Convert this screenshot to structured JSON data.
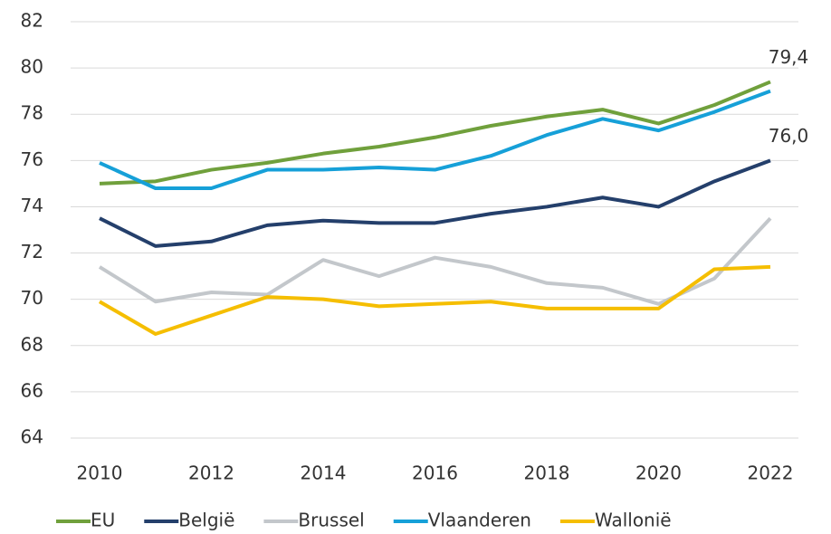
{
  "chart_data": {
    "type": "line",
    "x": [
      2010,
      2011,
      2012,
      2013,
      2014,
      2015,
      2016,
      2017,
      2018,
      2019,
      2020,
      2021,
      2022
    ],
    "xlim": [
      2010,
      2022
    ],
    "xticks": [
      2010,
      2012,
      2014,
      2016,
      2018,
      2020,
      2022
    ],
    "ylim": [
      64,
      82
    ],
    "yticks": [
      64,
      66,
      68,
      70,
      72,
      74,
      76,
      78,
      80,
      82
    ],
    "grid": true,
    "legend": "bottom",
    "series": [
      {
        "name": "EU",
        "color": "#70a03c",
        "values": [
          75.0,
          75.1,
          75.6,
          75.9,
          76.3,
          76.6,
          77.0,
          77.5,
          77.9,
          78.2,
          77.6,
          78.4,
          79.4
        ],
        "value_labels": [
          null,
          null,
          null,
          null,
          null,
          null,
          null,
          null,
          null,
          null,
          null,
          null,
          "79,4"
        ]
      },
      {
        "name": "België",
        "color": "#243f6b",
        "values": [
          73.5,
          72.3,
          72.5,
          73.2,
          73.4,
          73.3,
          73.3,
          73.7,
          74.0,
          74.4,
          74.0,
          75.1,
          76.0
        ],
        "value_labels": [
          null,
          null,
          null,
          null,
          null,
          null,
          null,
          null,
          null,
          null,
          null,
          null,
          "76,0"
        ]
      },
      {
        "name": "Brussel",
        "color": "#c3c7cb",
        "values": [
          71.4,
          69.9,
          70.3,
          70.2,
          71.7,
          71.0,
          71.8,
          71.4,
          70.7,
          70.5,
          69.8,
          70.9,
          73.5
        ]
      },
      {
        "name": "Vlaanderen",
        "color": "#16a0d8",
        "values": [
          75.9,
          74.8,
          74.8,
          75.6,
          75.6,
          75.7,
          75.6,
          76.2,
          77.1,
          77.8,
          77.3,
          78.1,
          79.0
        ]
      },
      {
        "name": "Wallonië",
        "color": "#f5be00",
        "values": [
          69.9,
          68.5,
          69.3,
          70.1,
          70.0,
          69.7,
          69.8,
          69.9,
          69.6,
          69.6,
          69.6,
          71.3,
          71.4
        ]
      }
    ]
  }
}
